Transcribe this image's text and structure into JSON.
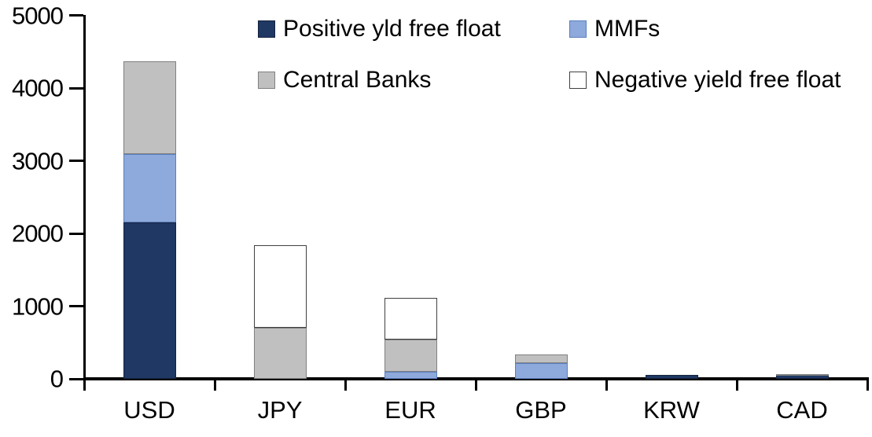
{
  "chart_data": {
    "type": "bar",
    "stacked": true,
    "title": "",
    "xlabel": "",
    "ylabel": "",
    "categories": [
      "USD",
      "JPY",
      "EUR",
      "GBP",
      "KRW",
      "CAD"
    ],
    "series": [
      {
        "name": "Positive yld free float",
        "color": "#1F3864",
        "border": "#16233F",
        "values": [
          2150,
          0,
          0,
          0,
          50,
          50
        ]
      },
      {
        "name": "MMFs",
        "color": "#8EA9DB",
        "border": "#5B7FC0",
        "values": [
          940,
          0,
          100,
          220,
          0,
          0
        ]
      },
      {
        "name": "Central Banks",
        "color": "#C0C0C0",
        "border": "#808080",
        "values": [
          1280,
          700,
          445,
          115,
          0,
          20
        ]
      },
      {
        "name": "Negative yield free float",
        "color": "#FFFFFF",
        "border": "#404040",
        "values": [
          0,
          1140,
          565,
          0,
          0,
          0
        ]
      }
    ],
    "ylim": [
      0,
      5000
    ],
    "yticks": [
      0,
      1000,
      2000,
      3000,
      4000,
      5000
    ],
    "grid": false,
    "legend_position": "top",
    "legend_rows": [
      [
        "Positive yld free float",
        "MMFs"
      ],
      [
        "Central Banks",
        "Negative yield free float"
      ]
    ],
    "axis_color": "#000000",
    "text_color": "#000000"
  }
}
